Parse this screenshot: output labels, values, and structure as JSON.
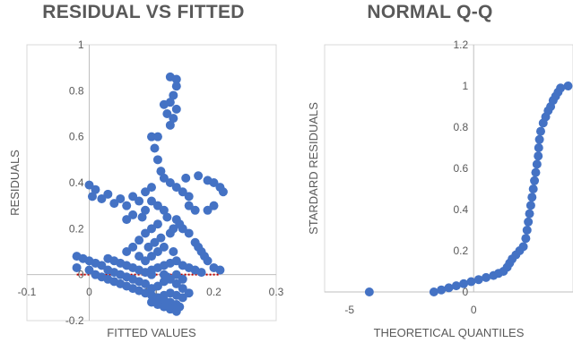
{
  "chart_data": [
    {
      "type": "scatter",
      "title": "RESIDUAL VS FITTED",
      "xlabel": "FITTED VALUES",
      "ylabel": "RESIDUALS",
      "xlim": [
        -0.1,
        0.3
      ],
      "ylim": [
        -0.2,
        1
      ],
      "xticks": [
        "-0.1",
        "0",
        "0.1",
        "0.2",
        "0.3"
      ],
      "yticks": [
        "-0.2",
        "0",
        "0.2",
        "0.4",
        "0.6",
        "0.8",
        "1"
      ],
      "series_color": "#4472C4",
      "reference_line": {
        "y": 0,
        "x_range": [
          -0.02,
          0.21
        ],
        "color": "#C00000",
        "style": "dotted"
      },
      "gridlines": "none",
      "points": [
        [
          0.13,
          0.86
        ],
        [
          0.14,
          0.85
        ],
        [
          0.14,
          0.82
        ],
        [
          0.135,
          0.78
        ],
        [
          0.13,
          0.75
        ],
        [
          0.14,
          0.72
        ],
        [
          0.12,
          0.74
        ],
        [
          0.125,
          0.7
        ],
        [
          0.135,
          0.68
        ],
        [
          0.13,
          0.65
        ],
        [
          0.11,
          0.6
        ],
        [
          0.1,
          0.6
        ],
        [
          0.105,
          0.55
        ],
        [
          0.11,
          0.5
        ],
        [
          0.115,
          0.45
        ],
        [
          0.12,
          0.42
        ],
        [
          0.13,
          0.4
        ],
        [
          0.14,
          0.38
        ],
        [
          0.155,
          0.42
        ],
        [
          0.175,
          0.43
        ],
        [
          0.19,
          0.41
        ],
        [
          0.2,
          0.4
        ],
        [
          0.21,
          0.38
        ],
        [
          0.215,
          0.36
        ],
        [
          0.2,
          0.3
        ],
        [
          0.19,
          0.28
        ],
        [
          0.15,
          0.36
        ],
        [
          0.16,
          0.34
        ],
        [
          0.16,
          0.3
        ],
        [
          0.17,
          0.28
        ],
        [
          0.0,
          0.39
        ],
        [
          0.01,
          0.37
        ],
        [
          0.005,
          0.34
        ],
        [
          0.02,
          0.33
        ],
        [
          0.03,
          0.35
        ],
        [
          0.04,
          0.31
        ],
        [
          0.05,
          0.33
        ],
        [
          0.06,
          0.3
        ],
        [
          0.07,
          0.34
        ],
        [
          0.08,
          0.32
        ],
        [
          0.09,
          0.36
        ],
        [
          0.1,
          0.38
        ],
        [
          0.1,
          0.32
        ],
        [
          0.09,
          0.28
        ],
        [
          0.085,
          0.25
        ],
        [
          0.07,
          0.26
        ],
        [
          0.06,
          0.24
        ],
        [
          0.11,
          0.3
        ],
        [
          0.12,
          0.28
        ],
        [
          0.125,
          0.25
        ],
        [
          0.11,
          0.22
        ],
        [
          0.1,
          0.2
        ],
        [
          0.09,
          0.18
        ],
        [
          0.08,
          0.15
        ],
        [
          0.07,
          0.12
        ],
        [
          0.06,
          0.1
        ],
        [
          0.095,
          0.12
        ],
        [
          0.105,
          0.14
        ],
        [
          0.115,
          0.16
        ],
        [
          0.13,
          0.18
        ],
        [
          0.135,
          0.2
        ],
        [
          0.14,
          0.24
        ],
        [
          0.145,
          0.22
        ],
        [
          0.15,
          0.2
        ],
        [
          0.16,
          0.18
        ],
        [
          0.17,
          0.14
        ],
        [
          0.175,
          0.12
        ],
        [
          0.18,
          0.1
        ],
        [
          0.185,
          0.08
        ],
        [
          0.19,
          0.06
        ],
        [
          0.2,
          0.03
        ],
        [
          0.21,
          0.02
        ],
        [
          0.03,
          0.07
        ],
        [
          0.04,
          0.06
        ],
        [
          0.05,
          0.05
        ],
        [
          0.06,
          0.04
        ],
        [
          0.07,
          0.03
        ],
        [
          0.08,
          0.02
        ],
        [
          0.09,
          0.01
        ],
        [
          0.1,
          0.02
        ],
        [
          0.11,
          0.03
        ],
        [
          0.12,
          0.04
        ],
        [
          0.13,
          0.05
        ],
        [
          0.14,
          0.06
        ],
        [
          0.15,
          0.04
        ],
        [
          0.16,
          0.03
        ],
        [
          0.17,
          0.02
        ],
        [
          0.18,
          0.01
        ],
        [
          -0.02,
          0.08
        ],
        [
          -0.01,
          0.07
        ],
        [
          0.0,
          0.06
        ],
        [
          0.01,
          0.05
        ],
        [
          0.02,
          0.04
        ],
        [
          -0.02,
          0.03
        ],
        [
          0.0,
          0.02
        ],
        [
          0.01,
          0.0
        ],
        [
          0.02,
          -0.01
        ],
        [
          0.03,
          -0.02
        ],
        [
          0.04,
          -0.03
        ],
        [
          0.05,
          -0.04
        ],
        [
          0.06,
          -0.05
        ],
        [
          0.07,
          -0.06
        ],
        [
          0.08,
          -0.07
        ],
        [
          0.09,
          -0.08
        ],
        [
          0.1,
          -0.09
        ],
        [
          0.11,
          -0.1
        ],
        [
          0.12,
          -0.11
        ],
        [
          0.13,
          -0.12
        ],
        [
          0.14,
          -0.13
        ],
        [
          0.145,
          -0.14
        ],
        [
          0.12,
          -0.14
        ],
        [
          0.13,
          -0.15
        ],
        [
          0.14,
          -0.16
        ],
        [
          0.1,
          -0.12
        ],
        [
          0.11,
          -0.13
        ],
        [
          0.12,
          -0.09
        ],
        [
          0.13,
          -0.08
        ],
        [
          0.14,
          -0.09
        ],
        [
          0.15,
          -0.1
        ],
        [
          0.16,
          -0.08
        ],
        [
          0.15,
          -0.06
        ],
        [
          0.14,
          -0.04
        ],
        [
          0.13,
          -0.02
        ],
        [
          0.12,
          -0.03
        ],
        [
          0.11,
          -0.05
        ],
        [
          0.1,
          -0.06
        ],
        [
          0.09,
          -0.04
        ],
        [
          0.08,
          -0.03
        ],
        [
          0.07,
          -0.02
        ],
        [
          0.06,
          -0.01
        ],
        [
          0.05,
          0.0
        ],
        [
          0.04,
          0.01
        ],
        [
          0.03,
          0.02
        ],
        [
          0.1,
          0.0
        ],
        [
          0.12,
          0.0
        ],
        [
          0.14,
          0.0
        ],
        [
          0.15,
          -0.02
        ],
        [
          0.125,
          -0.01
        ],
        [
          0.135,
          0.1
        ],
        [
          0.12,
          0.12
        ],
        [
          0.11,
          0.1
        ],
        [
          0.1,
          0.08
        ],
        [
          0.09,
          0.06
        ],
        [
          0.08,
          0.08
        ]
      ]
    },
    {
      "type": "scatter",
      "title": "NORMAL Q-Q",
      "xlabel": "THEORETICAL QUANTILES",
      "ylabel": "STARDARD RESIDUALS",
      "xlim": [
        -6,
        4
      ],
      "ylim": [
        0,
        1.2
      ],
      "xticks": [
        "-5",
        "0"
      ],
      "yticks": [
        "0",
        "0.2",
        "0.4",
        "0.6",
        "0.8",
        "1",
        "1.2"
      ],
      "series_color": "#4472C4",
      "gridlines": "none",
      "points": [
        [
          -4.2,
          0.0
        ],
        [
          -1.6,
          0.0
        ],
        [
          -1.3,
          0.01
        ],
        [
          -1.0,
          0.02
        ],
        [
          -0.7,
          0.03
        ],
        [
          -0.4,
          0.04
        ],
        [
          -0.1,
          0.05
        ],
        [
          0.2,
          0.06
        ],
        [
          0.5,
          0.07
        ],
        [
          0.8,
          0.08
        ],
        [
          1.0,
          0.09
        ],
        [
          1.2,
          0.1
        ],
        [
          1.35,
          0.12
        ],
        [
          1.45,
          0.14
        ],
        [
          1.55,
          0.16
        ],
        [
          1.7,
          0.18
        ],
        [
          1.85,
          0.2
        ],
        [
          2.0,
          0.22
        ],
        [
          2.1,
          0.26
        ],
        [
          2.15,
          0.3
        ],
        [
          2.2,
          0.34
        ],
        [
          2.25,
          0.38
        ],
        [
          2.3,
          0.42
        ],
        [
          2.35,
          0.46
        ],
        [
          2.4,
          0.5
        ],
        [
          2.45,
          0.54
        ],
        [
          2.5,
          0.58
        ],
        [
          2.55,
          0.62
        ],
        [
          2.6,
          0.66
        ],
        [
          2.62,
          0.7
        ],
        [
          2.65,
          0.74
        ],
        [
          2.7,
          0.78
        ],
        [
          2.8,
          0.82
        ],
        [
          2.9,
          0.85
        ],
        [
          3.0,
          0.88
        ],
        [
          3.1,
          0.9
        ],
        [
          3.2,
          0.93
        ],
        [
          3.3,
          0.95
        ],
        [
          3.4,
          0.97
        ],
        [
          3.5,
          0.99
        ],
        [
          3.8,
          1.0
        ]
      ]
    }
  ]
}
